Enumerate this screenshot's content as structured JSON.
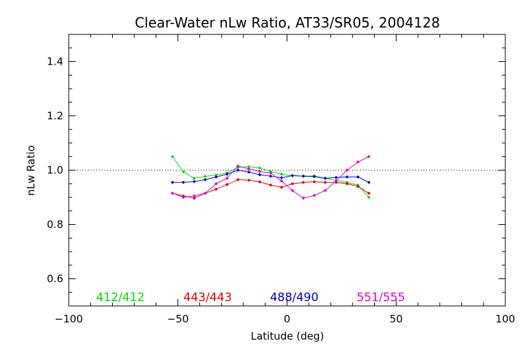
{
  "chart_data": {
    "type": "line",
    "title": "Clear-Water nLw Ratio, AT33/SR05, 2004128",
    "xlabel": "Latitude (deg)",
    "ylabel": "nLw Ratio",
    "xlim": [
      -100,
      100
    ],
    "ylim": [
      0.5,
      1.5
    ],
    "x_ticks": [
      -100,
      -50,
      0,
      50,
      100
    ],
    "x_tick_labels": [
      "−100",
      "−50",
      "0",
      "50",
      "100"
    ],
    "y_ticks": [
      0.6,
      0.8,
      1.0,
      1.2,
      1.4
    ],
    "y_tick_labels": [
      "0.6",
      "0.8",
      "1.0",
      "1.2",
      "1.4"
    ],
    "reference_line": 1.0,
    "grid": false,
    "legend_placement": "bottom",
    "series": [
      {
        "name": "412/412",
        "color": "#00dd00",
        "x": [
          -52.5,
          -47.5,
          -42.5,
          -37.5,
          -32.5,
          -27.5,
          -22.5,
          -17.5,
          -12.5,
          -7.5,
          -2.5,
          2.5,
          7.5,
          12.5,
          17.5,
          22.5,
          27.5,
          32.5,
          37.5
        ],
        "y": [
          1.05,
          0.994,
          0.97,
          0.977,
          0.982,
          0.99,
          1.01,
          1.013,
          1.008,
          0.995,
          0.985,
          0.98,
          0.978,
          0.975,
          0.97,
          0.962,
          0.955,
          0.945,
          0.9
        ]
      },
      {
        "name": "443/443",
        "color": "#dd0000",
        "x": [
          -52.5,
          -47.5,
          -42.5,
          -37.5,
          -32.5,
          -27.5,
          -22.5,
          -17.5,
          -12.5,
          -7.5,
          -2.5,
          2.5,
          7.5,
          12.5,
          17.5,
          22.5,
          27.5,
          32.5,
          37.5
        ],
        "y": [
          0.915,
          0.905,
          0.897,
          0.915,
          0.93,
          0.947,
          0.965,
          0.963,
          0.957,
          0.945,
          0.937,
          0.95,
          0.955,
          0.957,
          0.955,
          0.955,
          0.95,
          0.94,
          0.915
        ]
      },
      {
        "name": "488/490",
        "color": "#0000cc",
        "x": [
          -52.5,
          -47.5,
          -42.5,
          -37.5,
          -32.5,
          -27.5,
          -22.5,
          -17.5,
          -12.5,
          -7.5,
          -2.5,
          2.5,
          7.5,
          12.5,
          17.5,
          22.5,
          27.5,
          32.5,
          37.5
        ],
        "y": [
          0.955,
          0.955,
          0.958,
          0.965,
          0.975,
          0.985,
          1.0,
          0.993,
          0.983,
          0.978,
          0.972,
          0.98,
          0.978,
          0.978,
          0.97,
          0.973,
          0.975,
          0.975,
          0.955
        ]
      },
      {
        "name": "551/555",
        "color": "#dd00dd",
        "x": [
          -52.5,
          -47.5,
          -42.5,
          -37.5,
          -32.5,
          -27.5,
          -22.5,
          -17.5,
          -12.5,
          -7.5,
          -2.5,
          2.5,
          7.5,
          12.5,
          17.5,
          22.5,
          27.5,
          32.5,
          37.5
        ],
        "y": [
          0.915,
          0.9,
          0.905,
          0.915,
          0.95,
          0.97,
          1.015,
          1.005,
          0.995,
          0.99,
          0.96,
          0.925,
          0.897,
          0.907,
          0.925,
          0.96,
          1.0,
          1.03,
          1.05
        ]
      }
    ]
  }
}
